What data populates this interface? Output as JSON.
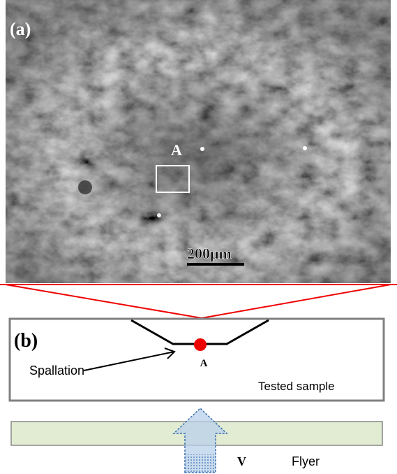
{
  "panel_a": {
    "label": "(a)",
    "region_label": "A",
    "scale_bar": "200μm"
  },
  "panel_b": {
    "label": "(b)",
    "spallation": "Spallation",
    "point_label": "A",
    "sample": "Tested sample",
    "velocity": "V",
    "flyer": "Flyer"
  }
}
